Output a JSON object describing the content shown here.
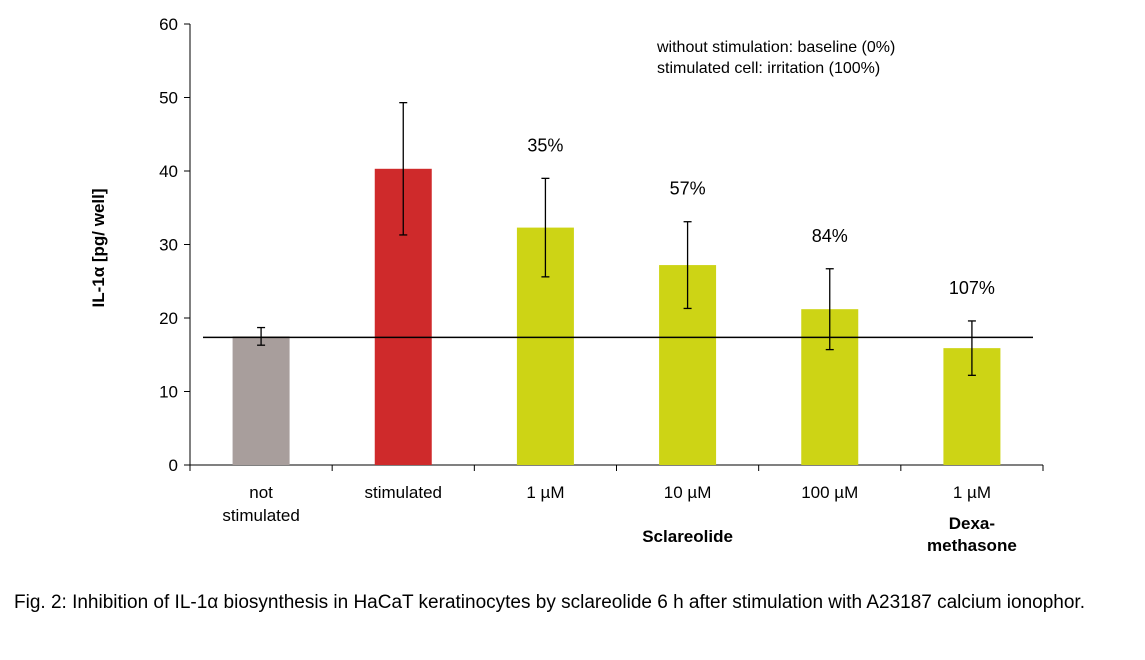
{
  "chart_data": {
    "type": "bar",
    "ylabel": "IL-1α [pg/ well]",
    "ylim": [
      0,
      60
    ],
    "yticks": [
      0,
      10,
      20,
      30,
      40,
      50,
      60
    ],
    "grid": false,
    "categories": [
      "not\nstimulated",
      "stimulated",
      "1 µM",
      "10 µM",
      "100 µM",
      "1 µM"
    ],
    "values": [
      17.5,
      40.3,
      32.3,
      27.2,
      21.2,
      15.9
    ],
    "error": [
      1.2,
      9.0,
      6.7,
      5.9,
      5.5,
      3.7
    ],
    "colors": [
      "#a89e9c",
      "#cf2a2b",
      "#cdd415",
      "#cdd415",
      "#cdd415",
      "#cdd415"
    ],
    "percent_labels": [
      "",
      "",
      "35%",
      "57%",
      "84%",
      "107%"
    ],
    "baseline_value": 17.5,
    "group_labels": [
      {
        "text": "Sclareolide",
        "span": [
          2,
          4
        ]
      },
      {
        "text": "Dexa-\nmethasone",
        "span": [
          5,
          5
        ]
      }
    ],
    "annotations": [
      "without stimulation: baseline (0%)",
      "stimulated cell: irritation (100%)"
    ]
  },
  "caption": "Fig. 2: Inhibition of IL-1α biosynthesis in HaCaT keratinocytes by sclareolide 6 h after stimulation with A23187 calcium ionophor."
}
